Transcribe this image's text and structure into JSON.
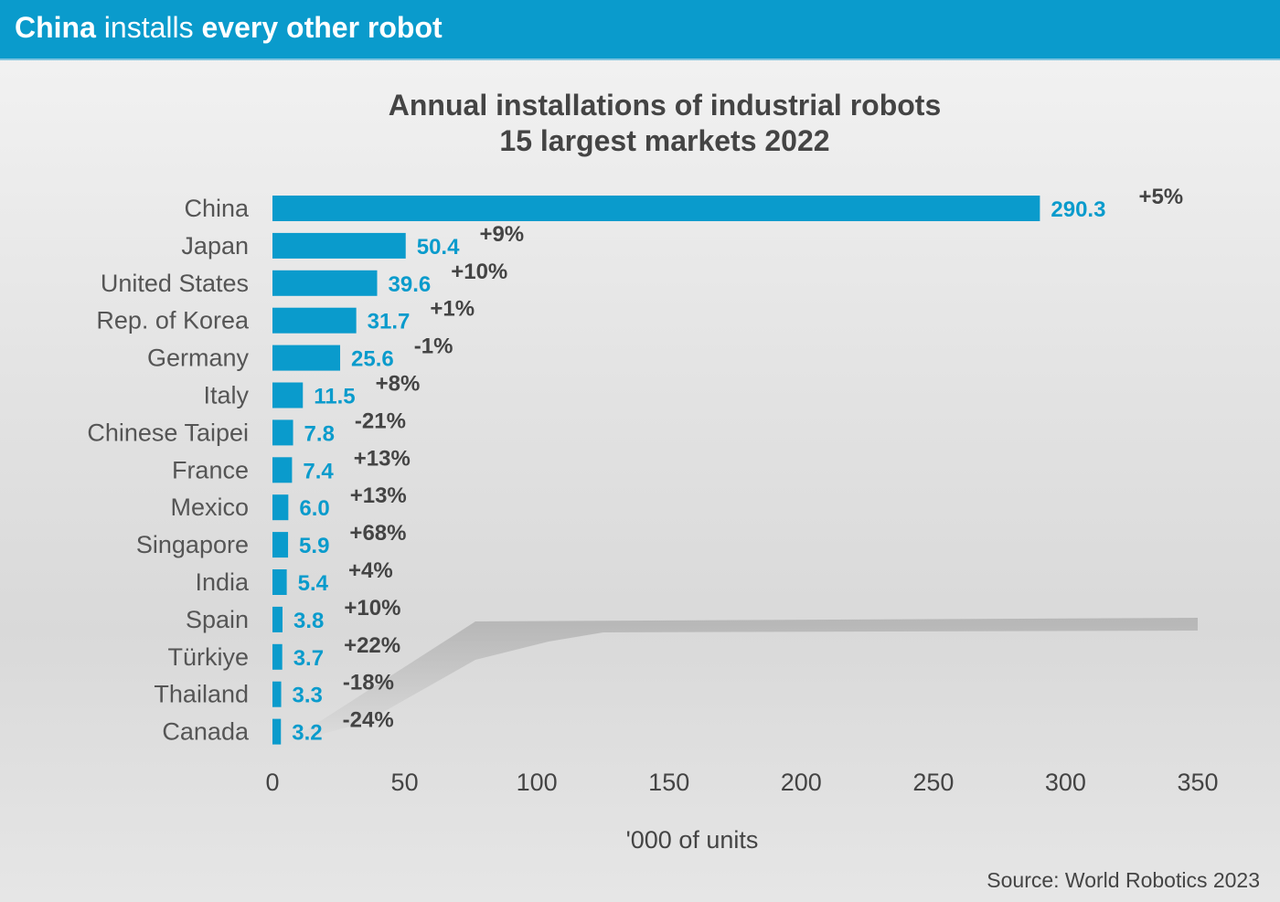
{
  "banner": {
    "part1": "China",
    "part2": " installs ",
    "part3": "every other robot"
  },
  "chart_data": {
    "type": "bar",
    "orientation": "horizontal",
    "title": "Annual installations of industrial robots",
    "subtitle": "15 largest markets 2022",
    "xlabel": "'000 of units",
    "xlim": [
      0,
      350
    ],
    "xticks": [
      0,
      50,
      100,
      150,
      200,
      250,
      300,
      350
    ],
    "grid": false,
    "bar_color": "#0a9bcc",
    "categories": [
      "China",
      "Japan",
      "United States",
      "Rep. of Korea",
      "Germany",
      "Italy",
      "Chinese Taipei",
      "France",
      "Mexico",
      "Singapore",
      "India",
      "Spain",
      "Türkiye",
      "Thailand",
      "Canada"
    ],
    "values": [
      290.3,
      50.4,
      39.6,
      31.7,
      25.6,
      11.5,
      7.8,
      7.4,
      6.0,
      5.9,
      5.4,
      3.8,
      3.7,
      3.3,
      3.2
    ],
    "value_labels": [
      "290.3",
      "50.4",
      "39.6",
      "31.7",
      "25.6",
      "11.5",
      "7.8",
      "7.4",
      "6.0",
      "5.9",
      "5.4",
      "3.8",
      "3.7",
      "3.3",
      "3.2"
    ],
    "changes": [
      "+5%",
      "+9%",
      "+10%",
      "+1%",
      "-1%",
      "+8%",
      "-21%",
      "+13%",
      "+13%",
      "+68%",
      "+4%",
      "+10%",
      "+22%",
      "-18%",
      "-24%"
    ],
    "source": "Source: World Robotics 2023"
  }
}
